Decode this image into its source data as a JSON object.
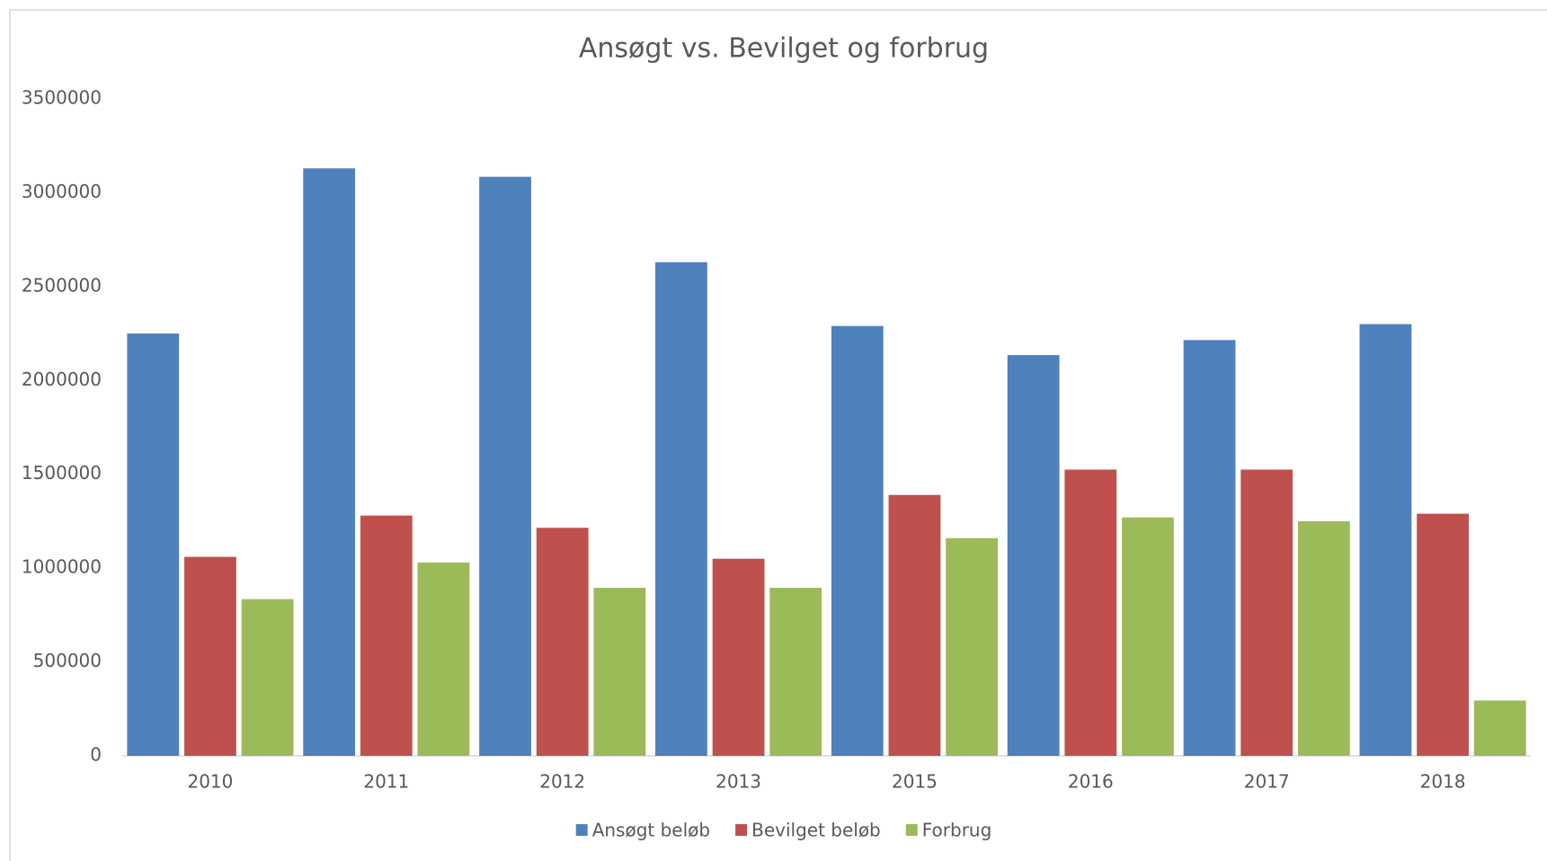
{
  "chart_data": {
    "type": "bar",
    "title": "Ansøgt vs. Bevilget og forbrug",
    "categories": [
      "2010",
      "2011",
      "2012",
      "2013",
      "2015",
      "2016",
      "2017",
      "2018"
    ],
    "series": [
      {
        "name": "Ansøgt beløb",
        "color": "#4f81bd",
        "values": [
          2250000,
          3130000,
          3085000,
          2630000,
          2290000,
          2135000,
          2215000,
          2300000
        ]
      },
      {
        "name": "Bevilget beløb",
        "color": "#c0504d",
        "values": [
          1060000,
          1280000,
          1215000,
          1050000,
          1390000,
          1525000,
          1525000,
          1290000
        ]
      },
      {
        "name": "Forbrug",
        "color": "#9bbb59",
        "values": [
          835000,
          1030000,
          895000,
          895000,
          1160000,
          1270000,
          1250000,
          295000
        ]
      }
    ],
    "ylim": [
      0,
      3500000
    ],
    "yticks": [
      0,
      500000,
      1000000,
      1500000,
      2000000,
      2500000,
      3000000,
      3500000
    ],
    "grid": false,
    "legend": "bottom"
  }
}
